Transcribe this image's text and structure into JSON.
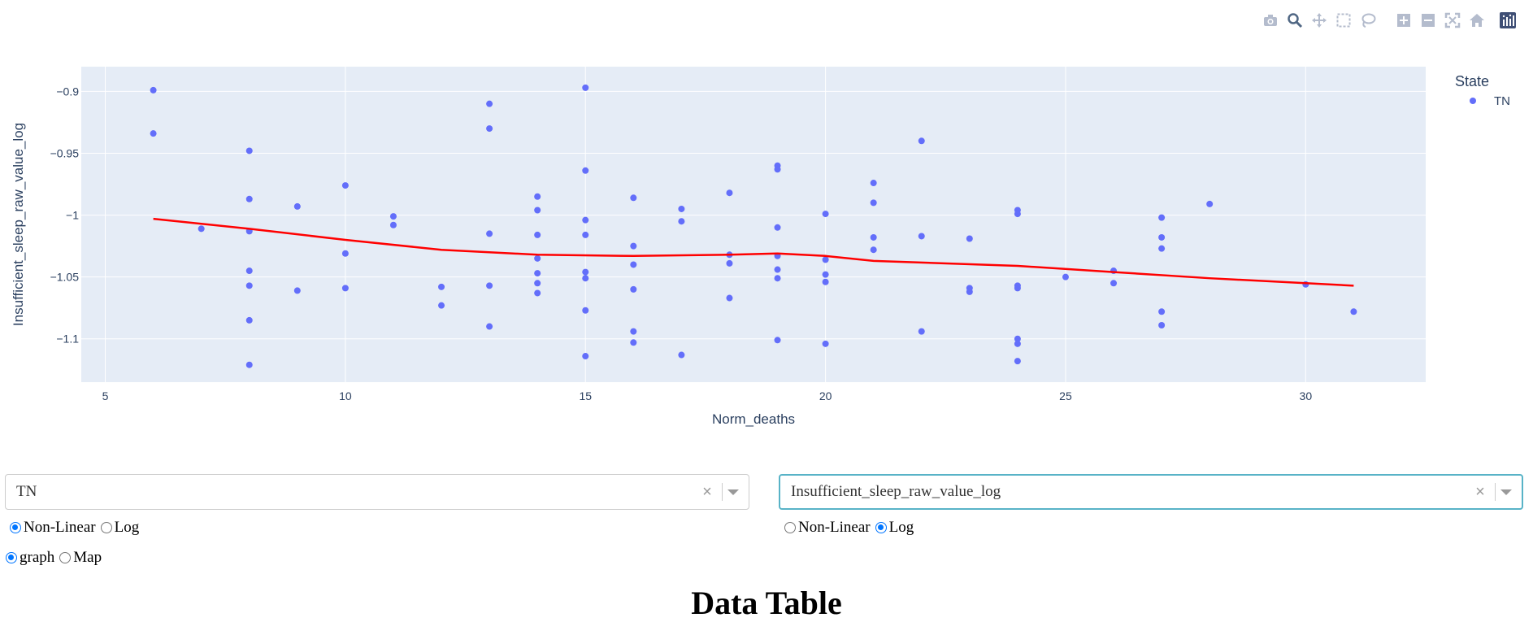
{
  "chart_data": {
    "type": "scatter",
    "xlabel": "Norm_deaths",
    "ylabel": "Insufficient_sleep_raw_value_log",
    "xlim": [
      4.5,
      32.5
    ],
    "ylim": [
      -1.135,
      -0.88
    ],
    "xticks": [
      5,
      10,
      15,
      20,
      25,
      30
    ],
    "yticks": [
      -0.9,
      -0.95,
      -1,
      -1.05,
      -1.1
    ],
    "ytick_labels": [
      "−0.9",
      "−0.95",
      "−1",
      "−1.05",
      "−1.1"
    ],
    "legend_title": "State",
    "legend_position": "top-right",
    "series": [
      {
        "name": "TN",
        "color": "#636efa",
        "points": [
          [
            6,
            -0.899
          ],
          [
            6,
            -0.934
          ],
          [
            7,
            -1.011
          ],
          [
            8,
            -0.948
          ],
          [
            8,
            -0.987
          ],
          [
            8,
            -1.013
          ],
          [
            8,
            -1.045
          ],
          [
            8,
            -1.057
          ],
          [
            8,
            -1.085
          ],
          [
            8,
            -1.121
          ],
          [
            9,
            -0.993
          ],
          [
            9,
            -1.061
          ],
          [
            10,
            -0.976
          ],
          [
            10,
            -1.031
          ],
          [
            10,
            -1.059
          ],
          [
            11,
            -1.001
          ],
          [
            11,
            -1.008
          ],
          [
            12,
            -1.058
          ],
          [
            12,
            -1.073
          ],
          [
            13,
            -0.91
          ],
          [
            13,
            -0.93
          ],
          [
            13,
            -1.015
          ],
          [
            13,
            -1.057
          ],
          [
            13,
            -1.09
          ],
          [
            14,
            -0.985
          ],
          [
            14,
            -0.996
          ],
          [
            14,
            -1.016
          ],
          [
            14,
            -1.035
          ],
          [
            14,
            -1.047
          ],
          [
            14,
            -1.055
          ],
          [
            14,
            -1.063
          ],
          [
            15,
            -0.897
          ],
          [
            15,
            -0.964
          ],
          [
            15,
            -1.004
          ],
          [
            15,
            -1.016
          ],
          [
            15,
            -1.046
          ],
          [
            15,
            -1.051
          ],
          [
            15,
            -1.077
          ],
          [
            15,
            -1.114
          ],
          [
            16,
            -0.986
          ],
          [
            16,
            -1.025
          ],
          [
            16,
            -1.04
          ],
          [
            16,
            -1.06
          ],
          [
            16,
            -1.094
          ],
          [
            16,
            -1.103
          ],
          [
            17,
            -0.995
          ],
          [
            17,
            -1.005
          ],
          [
            17,
            -1.113
          ],
          [
            18,
            -0.982
          ],
          [
            18,
            -1.032
          ],
          [
            18,
            -1.039
          ],
          [
            18,
            -1.067
          ],
          [
            19,
            -0.96
          ],
          [
            19,
            -0.963
          ],
          [
            19,
            -1.01
          ],
          [
            19,
            -1.033
          ],
          [
            19,
            -1.044
          ],
          [
            19,
            -1.051
          ],
          [
            19,
            -1.101
          ],
          [
            20,
            -0.999
          ],
          [
            20,
            -1.036
          ],
          [
            20,
            -1.048
          ],
          [
            20,
            -1.054
          ],
          [
            20,
            -1.104
          ],
          [
            21,
            -0.974
          ],
          [
            21,
            -0.99
          ],
          [
            21,
            -1.018
          ],
          [
            21,
            -1.028
          ],
          [
            22,
            -0.94
          ],
          [
            22,
            -1.017
          ],
          [
            22,
            -1.094
          ],
          [
            23,
            -1.019
          ],
          [
            23,
            -1.059
          ],
          [
            23,
            -1.062
          ],
          [
            24,
            -0.996
          ],
          [
            24,
            -0.999
          ],
          [
            24,
            -1.057
          ],
          [
            24,
            -1.059
          ],
          [
            24,
            -1.1
          ],
          [
            24,
            -1.104
          ],
          [
            24,
            -1.118
          ],
          [
            25,
            -1.05
          ],
          [
            26,
            -1.045
          ],
          [
            26,
            -1.055
          ],
          [
            27,
            -1.002
          ],
          [
            27,
            -1.018
          ],
          [
            27,
            -1.027
          ],
          [
            27,
            -1.078
          ],
          [
            27,
            -1.089
          ],
          [
            28,
            -0.991
          ],
          [
            30,
            -1.056
          ],
          [
            31,
            -1.078
          ]
        ]
      },
      {
        "name": "",
        "color": "#ff0000",
        "type": "line",
        "points": [
          [
            6,
            -1.003
          ],
          [
            8,
            -1.011
          ],
          [
            10,
            -1.02
          ],
          [
            12,
            -1.028
          ],
          [
            14,
            -1.032
          ],
          [
            16,
            -1.033
          ],
          [
            18,
            -1.032
          ],
          [
            19,
            -1.031
          ],
          [
            20,
            -1.033
          ],
          [
            21,
            -1.037
          ],
          [
            24,
            -1.041
          ],
          [
            26,
            -1.046
          ],
          [
            28,
            -1.051
          ],
          [
            31,
            -1.057
          ]
        ]
      }
    ]
  },
  "colors": {
    "plot_bg": "#e5ecf6",
    "grid": "#ffffff",
    "axis_text": "#2a3f5f",
    "modebar_icon": "#b4bccd",
    "modebar_active": "#506784"
  },
  "modebar": [
    "camera-icon",
    "zoom-icon",
    "pan-icon",
    "box-select-icon",
    "lasso-icon",
    "zoom-in-icon",
    "zoom-out-icon",
    "autoscale-icon",
    "reset-axes-icon",
    "plotly-logo-icon"
  ],
  "controls": {
    "state_dropdown": {
      "value": "TN",
      "clear": "×"
    },
    "variable_dropdown": {
      "value": "Insufficient_sleep_raw_value_log",
      "clear": "×"
    },
    "left_scale": {
      "options": [
        "Non-Linear",
        "Log"
      ],
      "selected": "Non-Linear"
    },
    "right_scale": {
      "options": [
        "Non-Linear",
        "Log"
      ],
      "selected": "Log"
    },
    "view": {
      "options": [
        "graph",
        "Map"
      ],
      "selected": "graph"
    }
  },
  "heading": "Data Table"
}
